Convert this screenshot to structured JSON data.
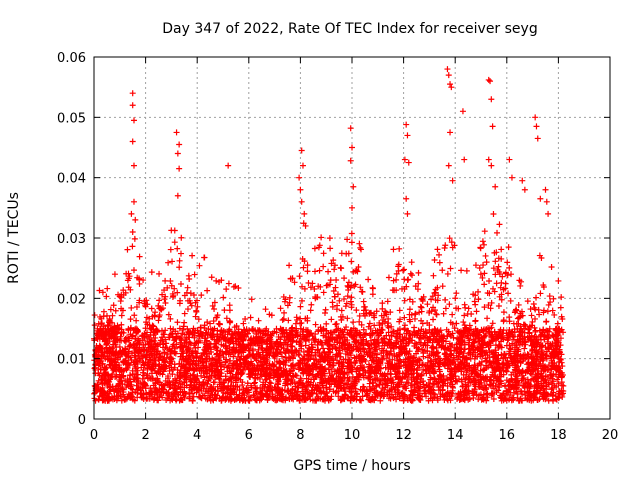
{
  "chart_data": {
    "type": "scatter",
    "title": "Day 347 of 2022, Rate Of TEC Index for receiver seyg",
    "xlabel": "GPS time / hours",
    "ylabel": "ROTI / TECUs",
    "xlim": [
      0,
      20
    ],
    "ylim": [
      0,
      0.06
    ],
    "xticks": [
      0,
      2,
      4,
      6,
      8,
      10,
      12,
      14,
      16,
      18,
      20
    ],
    "yticks": [
      0,
      0.01,
      0.02,
      0.03,
      0.04,
      0.05,
      0.06
    ],
    "xtick_labels": [
      "0",
      "2",
      "4",
      "6",
      "8",
      "10",
      "12",
      "14",
      "16",
      "18",
      "20"
    ],
    "ytick_labels": [
      "0",
      "0.01",
      "0.02",
      "0.03",
      "0.04",
      "0.05",
      "0.06"
    ],
    "grid": true,
    "legend": "none",
    "marker": "plus",
    "color": "#ff0000",
    "data_x_range": [
      0,
      18.2
    ],
    "series": [
      {
        "x": [
          1.5,
          1.5,
          1.55,
          1.5,
          1.55,
          1.55,
          1.45,
          1.5,
          1.6,
          3.2,
          3.3,
          3.25,
          3.3,
          3.25,
          5.2,
          7.95,
          8.05,
          8.1,
          8.0,
          8.05,
          8.15,
          8.2,
          9.95,
          10.0,
          9.95,
          10.05,
          10.0,
          12.1,
          12.15,
          12.05,
          12.2,
          12.1,
          12.15,
          13.7,
          13.75,
          13.8,
          13.85,
          13.8,
          13.75,
          13.9,
          14.3,
          14.35,
          15.3,
          15.35,
          15.4,
          15.45,
          15.3,
          15.4,
          15.55,
          16.1,
          16.2,
          16.6,
          16.7,
          17.1,
          17.15,
          17.2,
          17.3,
          17.5,
          17.55,
          17.6
        ],
        "y": [
          0.054,
          0.052,
          0.0495,
          0.046,
          0.042,
          0.036,
          0.034,
          0.031,
          0.033,
          0.0475,
          0.0455,
          0.044,
          0.0415,
          0.037,
          0.042,
          0.04,
          0.0445,
          0.042,
          0.038,
          0.036,
          0.034,
          0.032,
          0.0482,
          0.045,
          0.0428,
          0.0385,
          0.035,
          0.0488,
          0.047,
          0.043,
          0.0425,
          0.0365,
          0.034,
          0.058,
          0.057,
          0.0555,
          0.055,
          0.0475,
          0.042,
          0.0395,
          0.051,
          0.043,
          0.0562,
          0.056,
          0.053,
          0.0485,
          0.043,
          0.042,
          0.0385,
          0.043,
          0.04,
          0.0395,
          0.038,
          0.05,
          0.0485,
          0.0465,
          0.0365,
          0.038,
          0.036,
          0.034
        ]
      }
    ]
  }
}
